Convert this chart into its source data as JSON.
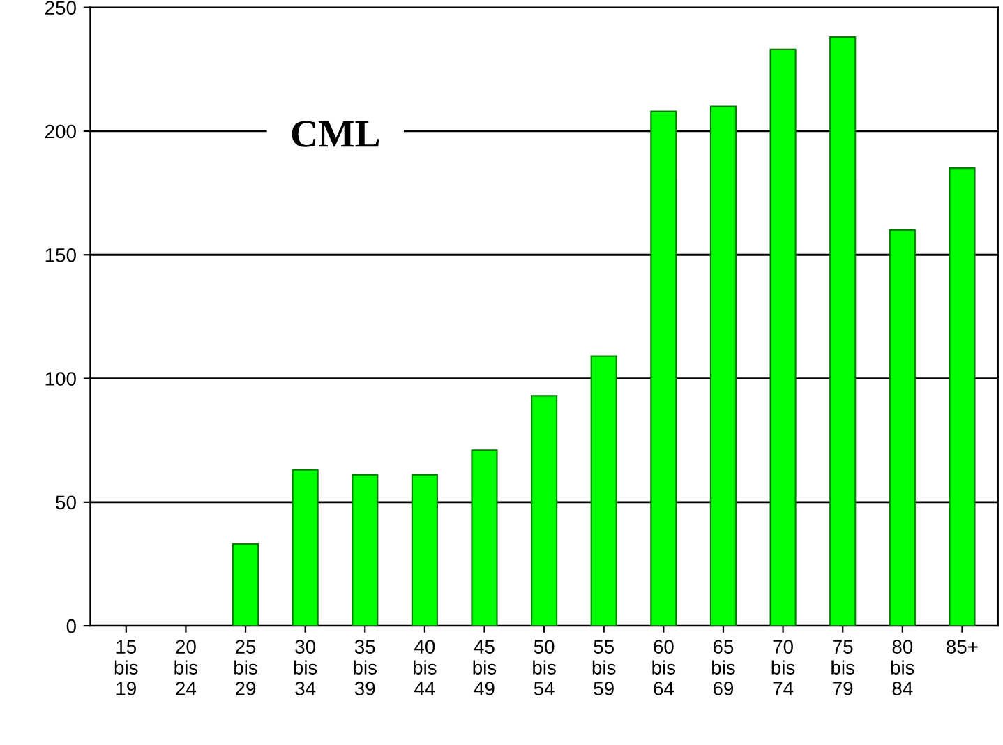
{
  "chart_data": {
    "type": "bar",
    "title": "CML",
    "categories": [
      "15\nbis\n19",
      "20\nbis\n24",
      "25\nbis\n29",
      "30\nbis\n34",
      "35\nbis\n39",
      "40\nbis\n44",
      "45\nbis\n49",
      "50\nbis\n54",
      "55\nbis\n59",
      "60\nbis\n64",
      "65\nbis\n69",
      "70\nbis\n74",
      "75\nbis\n79",
      "80\nbis\n84",
      "85+"
    ],
    "values": [
      0,
      0,
      33,
      63,
      61,
      61,
      71,
      93,
      109,
      208,
      210,
      233,
      238,
      160,
      185
    ],
    "color": "#00ff00",
    "ylim": [
      0,
      250
    ],
    "yticks": [
      0,
      50,
      100,
      150,
      200,
      250
    ],
    "grid": "y"
  }
}
